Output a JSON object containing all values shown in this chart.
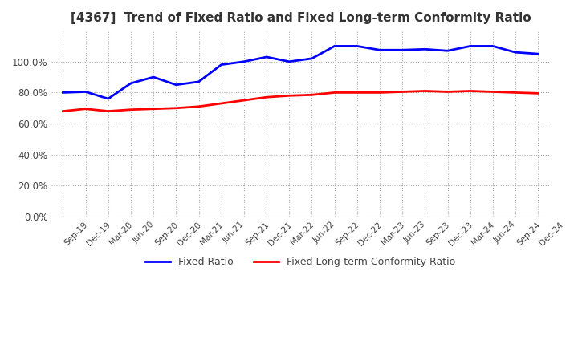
{
  "title": "[4367]  Trend of Fixed Ratio and Fixed Long-term Conformity Ratio",
  "title_fontsize": 11,
  "x_labels": [
    "Sep-19",
    "Dec-19",
    "Mar-20",
    "Jun-20",
    "Sep-20",
    "Dec-20",
    "Mar-21",
    "Jun-21",
    "Sep-21",
    "Dec-21",
    "Mar-22",
    "Jun-22",
    "Sep-22",
    "Dec-22",
    "Mar-23",
    "Jun-23",
    "Sep-23",
    "Dec-23",
    "Mar-24",
    "Jun-24",
    "Sep-24",
    "Dec-24"
  ],
  "fixed_ratio": [
    80.0,
    80.5,
    76.0,
    86.0,
    90.0,
    85.0,
    87.0,
    98.0,
    100.0,
    103.0,
    100.0,
    102.0,
    110.0,
    110.0,
    107.5,
    107.5,
    108.0,
    107.0,
    110.0,
    110.0,
    106.0,
    105.0
  ],
  "fixed_lt_ratio": [
    68.0,
    69.5,
    68.0,
    69.0,
    69.5,
    70.0,
    71.0,
    73.0,
    75.0,
    77.0,
    78.0,
    78.5,
    80.0,
    80.0,
    80.0,
    80.5,
    81.0,
    80.5,
    81.0,
    80.5,
    80.0,
    79.5
  ],
  "fixed_ratio_color": "#0000FF",
  "fixed_lt_ratio_color": "#FF0000",
  "ylim": [
    0,
    120
  ],
  "yticks": [
    0,
    20,
    40,
    60,
    80,
    100
  ],
  "ytick_labels": [
    "0.0%",
    "20.0%",
    "40.0%",
    "60.0%",
    "80.0%",
    "100.0%"
  ],
  "background_color": "#FFFFFF",
  "plot_bg_color": "#FFFFFF",
  "grid_color": "#AAAAAA",
  "line_width": 2.0,
  "legend_fixed_ratio": "Fixed Ratio",
  "legend_fixed_lt_ratio": "Fixed Long-term Conformity Ratio"
}
